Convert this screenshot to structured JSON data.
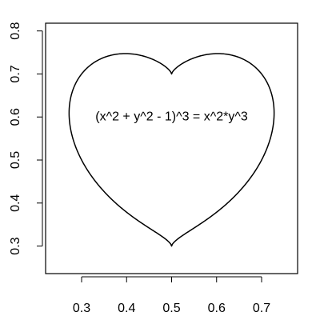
{
  "chart_data": {
    "type": "line",
    "title": "",
    "xlabel": "",
    "ylabel": "",
    "xlim": [
      0.22,
      0.78
    ],
    "ylim": [
      0.236,
      0.818
    ],
    "x_ticks": [
      0.3,
      0.4,
      0.5,
      0.6,
      0.7
    ],
    "x_tick_labels": [
      "0.3",
      "0.4",
      "0.5",
      "0.6",
      "0.7"
    ],
    "y_ticks": [
      0.3,
      0.4,
      0.5,
      0.6,
      0.7,
      0.8
    ],
    "y_tick_labels": [
      "0.3",
      "0.4",
      "0.5",
      "0.6",
      "0.7",
      "0.8"
    ],
    "grid": false,
    "legend": "none",
    "curve": {
      "equation": "(x^2 + y^2 - 1)^3 = x^2*y^3",
      "center": [
        0.5,
        0.5
      ],
      "scale": 0.2,
      "color": "#000000"
    },
    "annotations": [
      {
        "text": "(x^2 + y^2 - 1)^3 = x^2*y^3",
        "x": 0.5,
        "y": 0.6
      }
    ]
  }
}
